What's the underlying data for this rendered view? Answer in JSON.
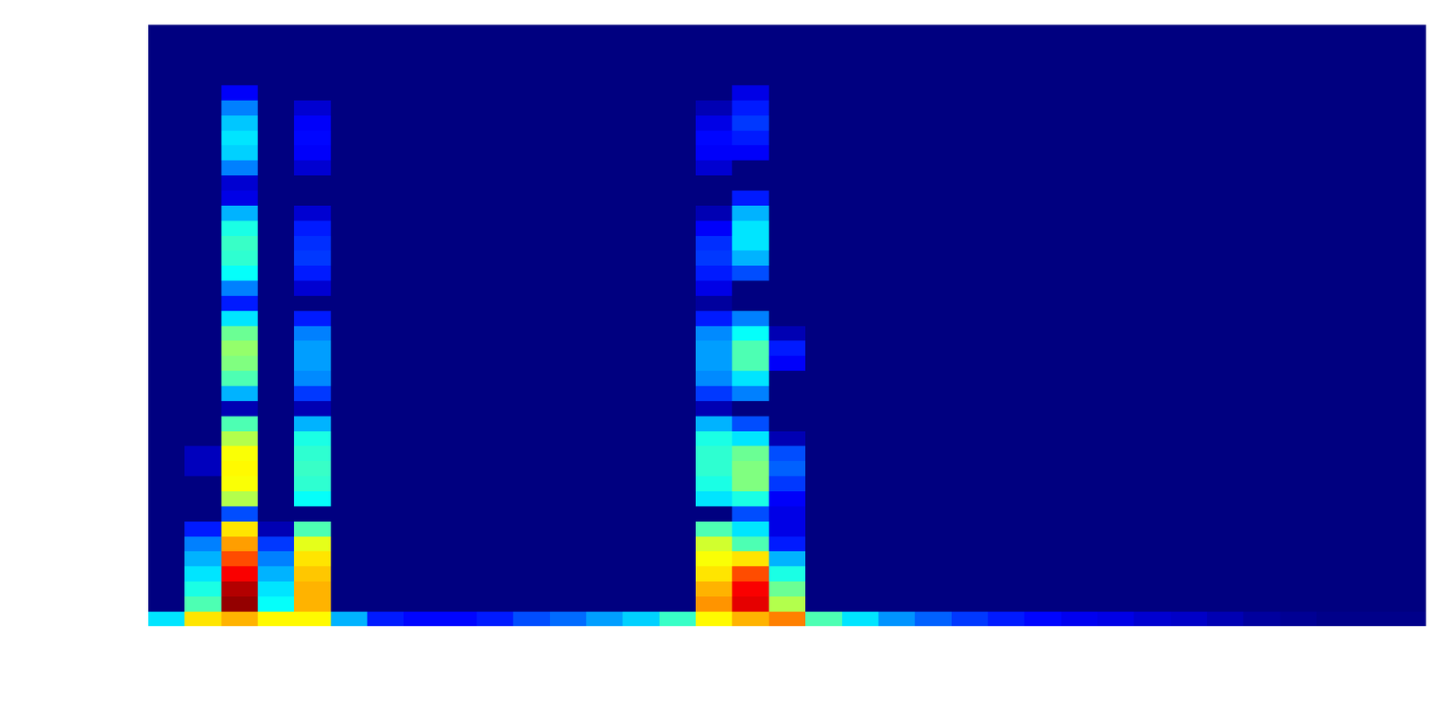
{
  "chart_data": {
    "type": "heatmap",
    "tick_labels": false,
    "zlim": [
      0,
      10
    ],
    "z": [
      [
        3.5,
        6.5,
        7,
        6.3,
        6.3,
        3,
        1.5,
        1.3,
        1.3,
        1.5,
        2,
        2.3,
        2.8,
        3.3,
        4.3,
        6.3,
        7,
        7.5,
        4.5,
        3.5,
        2.7,
        2.2,
        1.8,
        1.5,
        1.3,
        1.1,
        1,
        0.8,
        0.7,
        0.5,
        0.3,
        0.2,
        0.1,
        0.1,
        0.1
      ],
      [
        0,
        4.5,
        9.8,
        3.8,
        7,
        0,
        0,
        0,
        0,
        0,
        0,
        0,
        0,
        0,
        0,
        7.3,
        9,
        5.5,
        0,
        0,
        0,
        0,
        0,
        0,
        0,
        0,
        0,
        0,
        0,
        0,
        0,
        0,
        0,
        0,
        0
      ],
      [
        0,
        4,
        9.5,
        3.5,
        7,
        0,
        0,
        0,
        0,
        0,
        0,
        0,
        0,
        0,
        0,
        7,
        8.8,
        4.8,
        0,
        0,
        0,
        0,
        0,
        0,
        0,
        0,
        0,
        0,
        0,
        0,
        0,
        0,
        0,
        0,
        0
      ],
      [
        0,
        3.5,
        8.8,
        3,
        6.8,
        0,
        0,
        0,
        0,
        0,
        0,
        0,
        0,
        0,
        0,
        6.5,
        8,
        4,
        0,
        0,
        0,
        0,
        0,
        0,
        0,
        0,
        0,
        0,
        0,
        0,
        0,
        0,
        0,
        0,
        0
      ],
      [
        0,
        3,
        8,
        2.5,
        6.5,
        0,
        0,
        0,
        0,
        0,
        0,
        0,
        0,
        0,
        0,
        6.2,
        6.5,
        3,
        0,
        0,
        0,
        0,
        0,
        0,
        0,
        0,
        0,
        0,
        0,
        0,
        0,
        0,
        0,
        0,
        0
      ],
      [
        0,
        2.5,
        7.2,
        1.8,
        6,
        0,
        0,
        0,
        0,
        0,
        0,
        0,
        0,
        0,
        0,
        5.8,
        4.5,
        1.5,
        0,
        0,
        0,
        0,
        0,
        0,
        0,
        0,
        0,
        0,
        0,
        0,
        0,
        0,
        0,
        0,
        0
      ],
      [
        0,
        1.5,
        6.5,
        0.5,
        4.5,
        0,
        0,
        0,
        0,
        0,
        0,
        0,
        0,
        0,
        0,
        4.5,
        3.5,
        1,
        0,
        0,
        0,
        0,
        0,
        0,
        0,
        0,
        0,
        0,
        0,
        0,
        0,
        0,
        0,
        0,
        0
      ],
      [
        0,
        0,
        2,
        0,
        0,
        0,
        0,
        0,
        0,
        0,
        0,
        0,
        0,
        0,
        0,
        0,
        2,
        1,
        0,
        0,
        0,
        0,
        0,
        0,
        0,
        0,
        0,
        0,
        0,
        0,
        0,
        0,
        0,
        0,
        0
      ],
      [
        0,
        0,
        5.5,
        0,
        3.8,
        0,
        0,
        0,
        0,
        0,
        0,
        0,
        0,
        0,
        0,
        3.5,
        4,
        1.2,
        0,
        0,
        0,
        0,
        0,
        0,
        0,
        0,
        0,
        0,
        0,
        0,
        0,
        0,
        0,
        0,
        0
      ],
      [
        0,
        0,
        6.2,
        0,
        4.2,
        0,
        0,
        0,
        0,
        0,
        0,
        0,
        0,
        0,
        0,
        4,
        5,
        1.8,
        0,
        0,
        0,
        0,
        0,
        0,
        0,
        0,
        0,
        0,
        0,
        0,
        0,
        0,
        0,
        0,
        0
      ],
      [
        0,
        0.6,
        6.3,
        0,
        4.3,
        0,
        0,
        0,
        0,
        0,
        0,
        0,
        0,
        0,
        0,
        4.2,
        5,
        2.2,
        0,
        0,
        0,
        0,
        0,
        0,
        0,
        0,
        0,
        0,
        0,
        0,
        0,
        0,
        0,
        0,
        0
      ],
      [
        0,
        0.6,
        6.2,
        0,
        4.2,
        0,
        0,
        0,
        0,
        0,
        0,
        0,
        0,
        0,
        0,
        4.2,
        4.8,
        2,
        0,
        0,
        0,
        0,
        0,
        0,
        0,
        0,
        0,
        0,
        0,
        0,
        0,
        0,
        0,
        0,
        0
      ],
      [
        0,
        0,
        5.5,
        0,
        4,
        0,
        0,
        0,
        0,
        0,
        0,
        0,
        0,
        0,
        0,
        4,
        3.5,
        0.5,
        0,
        0,
        0,
        0,
        0,
        0,
        0,
        0,
        0,
        0,
        0,
        0,
        0,
        0,
        0,
        0,
        0
      ],
      [
        0,
        0,
        4.5,
        0,
        3,
        0,
        0,
        0,
        0,
        0,
        0,
        0,
        0,
        0,
        0,
        3,
        2,
        0,
        0,
        0,
        0,
        0,
        0,
        0,
        0,
        0,
        0,
        0,
        0,
        0,
        0,
        0,
        0,
        0,
        0
      ],
      [
        0,
        0,
        0.5,
        0,
        0.5,
        0,
        0,
        0,
        0,
        0,
        0,
        0,
        0,
        0,
        0,
        0.5,
        0,
        0,
        0,
        0,
        0,
        0,
        0,
        0,
        0,
        0,
        0,
        0,
        0,
        0,
        0,
        0,
        0,
        0,
        0
      ],
      [
        0,
        0,
        3,
        0,
        1.8,
        0,
        0,
        0,
        0,
        0,
        0,
        0,
        0,
        0,
        0,
        1.8,
        2.5,
        0,
        0,
        0,
        0,
        0,
        0,
        0,
        0,
        0,
        0,
        0,
        0,
        0,
        0,
        0,
        0,
        0,
        0
      ],
      [
        0,
        0,
        4.5,
        0,
        2.6,
        0,
        0,
        0,
        0,
        0,
        0,
        0,
        0,
        0,
        0,
        2.6,
        3.5,
        0,
        0,
        0,
        0,
        0,
        0,
        0,
        0,
        0,
        0,
        0,
        0,
        0,
        0,
        0,
        0,
        0,
        0
      ],
      [
        0,
        0,
        5,
        0,
        2.8,
        0,
        0,
        0,
        0,
        0,
        0,
        0,
        0,
        0,
        0,
        2.8,
        4.5,
        1.2,
        0,
        0,
        0,
        0,
        0,
        0,
        0,
        0,
        0,
        0,
        0,
        0,
        0,
        0,
        0,
        0,
        0
      ],
      [
        0,
        0,
        5.2,
        0,
        2.8,
        0,
        0,
        0,
        0,
        0,
        0,
        0,
        0,
        0,
        0,
        2.8,
        4.5,
        1.5,
        0,
        0,
        0,
        0,
        0,
        0,
        0,
        0,
        0,
        0,
        0,
        0,
        0,
        0,
        0,
        0,
        0
      ],
      [
        0,
        0,
        4.8,
        0,
        2.5,
        0,
        0,
        0,
        0,
        0,
        0,
        0,
        0,
        0,
        0,
        2.6,
        3.8,
        0.5,
        0,
        0,
        0,
        0,
        0,
        0,
        0,
        0,
        0,
        0,
        0,
        0,
        0,
        0,
        0,
        0,
        0
      ],
      [
        0,
        0,
        3.5,
        0,
        1.5,
        0,
        0,
        0,
        0,
        0,
        0,
        0,
        0,
        0,
        0,
        1.5,
        2.5,
        0,
        0,
        0,
        0,
        0,
        0,
        0,
        0,
        0,
        0,
        0,
        0,
        0,
        0,
        0,
        0,
        0,
        0
      ],
      [
        0,
        0,
        1.5,
        0,
        0,
        0,
        0,
        0,
        0,
        0,
        0,
        0,
        0,
        0,
        0,
        0.3,
        0,
        0,
        0,
        0,
        0,
        0,
        0,
        0,
        0,
        0,
        0,
        0,
        0,
        0,
        0,
        0,
        0,
        0,
        0
      ],
      [
        0,
        0,
        2.5,
        0,
        0.8,
        0,
        0,
        0,
        0,
        0,
        0,
        0,
        0,
        0,
        0,
        1,
        0,
        0,
        0,
        0,
        0,
        0,
        0,
        0,
        0,
        0,
        0,
        0,
        0,
        0,
        0,
        0,
        0,
        0,
        0
      ],
      [
        0,
        0,
        3.8,
        0,
        1.5,
        0,
        0,
        0,
        0,
        0,
        0,
        0,
        0,
        0,
        0,
        1.5,
        2,
        0,
        0,
        0,
        0,
        0,
        0,
        0,
        0,
        0,
        0,
        0,
        0,
        0,
        0,
        0,
        0,
        0,
        0
      ],
      [
        0,
        0,
        4.2,
        0,
        1.8,
        0,
        0,
        0,
        0,
        0,
        0,
        0,
        0,
        0,
        0,
        1.8,
        3,
        0,
        0,
        0,
        0,
        0,
        0,
        0,
        0,
        0,
        0,
        0,
        0,
        0,
        0,
        0,
        0,
        0,
        0
      ],
      [
        0,
        0,
        4.3,
        0,
        1.7,
        0,
        0,
        0,
        0,
        0,
        0,
        0,
        0,
        0,
        0,
        1.7,
        3.5,
        0,
        0,
        0,
        0,
        0,
        0,
        0,
        0,
        0,
        0,
        0,
        0,
        0,
        0,
        0,
        0,
        0,
        0
      ],
      [
        0,
        0,
        4,
        0,
        1.5,
        0,
        0,
        0,
        0,
        0,
        0,
        0,
        0,
        0,
        0,
        1.2,
        3.5,
        0,
        0,
        0,
        0,
        0,
        0,
        0,
        0,
        0,
        0,
        0,
        0,
        0,
        0,
        0,
        0,
        0,
        0
      ],
      [
        0,
        0,
        3,
        0,
        0.8,
        0,
        0,
        0,
        0,
        0,
        0,
        0,
        0,
        0,
        0,
        0.5,
        3,
        0,
        0,
        0,
        0,
        0,
        0,
        0,
        0,
        0,
        0,
        0,
        0,
        0,
        0,
        0,
        0,
        0,
        0
      ],
      [
        0,
        0,
        1,
        0,
        0,
        0,
        0,
        0,
        0,
        0,
        0,
        0,
        0,
        0,
        0,
        0,
        1.5,
        0,
        0,
        0,
        0,
        0,
        0,
        0,
        0,
        0,
        0,
        0,
        0,
        0,
        0,
        0,
        0,
        0,
        0
      ],
      [
        0,
        0,
        0.8,
        0,
        0,
        0,
        0,
        0,
        0,
        0,
        0,
        0,
        0,
        0,
        0,
        0,
        0,
        0,
        0,
        0,
        0,
        0,
        0,
        0,
        0,
        0,
        0,
        0,
        0,
        0,
        0,
        0,
        0,
        0,
        0
      ],
      [
        0,
        0,
        2.5,
        0,
        0.8,
        0,
        0,
        0,
        0,
        0,
        0,
        0,
        0,
        0,
        0,
        0.8,
        0,
        0,
        0,
        0,
        0,
        0,
        0,
        0,
        0,
        0,
        0,
        0,
        0,
        0,
        0,
        0,
        0,
        0,
        0
      ],
      [
        0,
        0,
        3.3,
        0,
        1.2,
        0,
        0,
        0,
        0,
        0,
        0,
        0,
        0,
        0,
        0,
        1.2,
        1.2,
        0,
        0,
        0,
        0,
        0,
        0,
        0,
        0,
        0,
        0,
        0,
        0,
        0,
        0,
        0,
        0,
        0,
        0
      ],
      [
        0,
        0,
        3.5,
        0,
        1.3,
        0,
        0,
        0,
        0,
        0,
        0,
        0,
        0,
        0,
        0,
        1.3,
        1.5,
        0,
        0,
        0,
        0,
        0,
        0,
        0,
        0,
        0,
        0,
        0,
        0,
        0,
        0,
        0,
        0,
        0,
        0
      ],
      [
        0,
        0,
        3.2,
        0,
        1.2,
        0,
        0,
        0,
        0,
        0,
        0,
        0,
        0,
        0,
        0,
        1,
        1.8,
        0,
        0,
        0,
        0,
        0,
        0,
        0,
        0,
        0,
        0,
        0,
        0,
        0,
        0,
        0,
        0,
        0,
        0
      ],
      [
        0,
        0,
        2.5,
        0,
        0.8,
        0,
        0,
        0,
        0,
        0,
        0,
        0,
        0,
        0,
        0,
        0.5,
        1.5,
        0,
        0,
        0,
        0,
        0,
        0,
        0,
        0,
        0,
        0,
        0,
        0,
        0,
        0,
        0,
        0,
        0,
        0
      ],
      [
        0,
        0,
        1.2,
        0,
        0,
        0,
        0,
        0,
        0,
        0,
        0,
        0,
        0,
        0,
        0,
        0,
        1,
        0,
        0,
        0,
        0,
        0,
        0,
        0,
        0,
        0,
        0,
        0,
        0,
        0,
        0,
        0,
        0,
        0,
        0
      ],
      [
        0,
        0,
        0,
        0,
        0,
        0,
        0,
        0,
        0,
        0,
        0,
        0,
        0,
        0,
        0,
        0,
        0,
        0,
        0,
        0,
        0,
        0,
        0,
        0,
        0,
        0,
        0,
        0,
        0,
        0,
        0,
        0,
        0,
        0,
        0
      ],
      [
        0,
        0,
        0,
        0,
        0,
        0,
        0,
        0,
        0,
        0,
        0,
        0,
        0,
        0,
        0,
        0,
        0,
        0,
        0,
        0,
        0,
        0,
        0,
        0,
        0,
        0,
        0,
        0,
        0,
        0,
        0,
        0,
        0,
        0,
        0
      ],
      [
        0,
        0,
        0,
        0,
        0,
        0,
        0,
        0,
        0,
        0,
        0,
        0,
        0,
        0,
        0,
        0,
        0,
        0,
        0,
        0,
        0,
        0,
        0,
        0,
        0,
        0,
        0,
        0,
        0,
        0,
        0,
        0,
        0,
        0,
        0
      ],
      [
        0,
        0,
        0,
        0,
        0,
        0,
        0,
        0,
        0,
        0,
        0,
        0,
        0,
        0,
        0,
        0,
        0,
        0,
        0,
        0,
        0,
        0,
        0,
        0,
        0,
        0,
        0,
        0,
        0,
        0,
        0,
        0,
        0,
        0,
        0
      ]
    ]
  }
}
